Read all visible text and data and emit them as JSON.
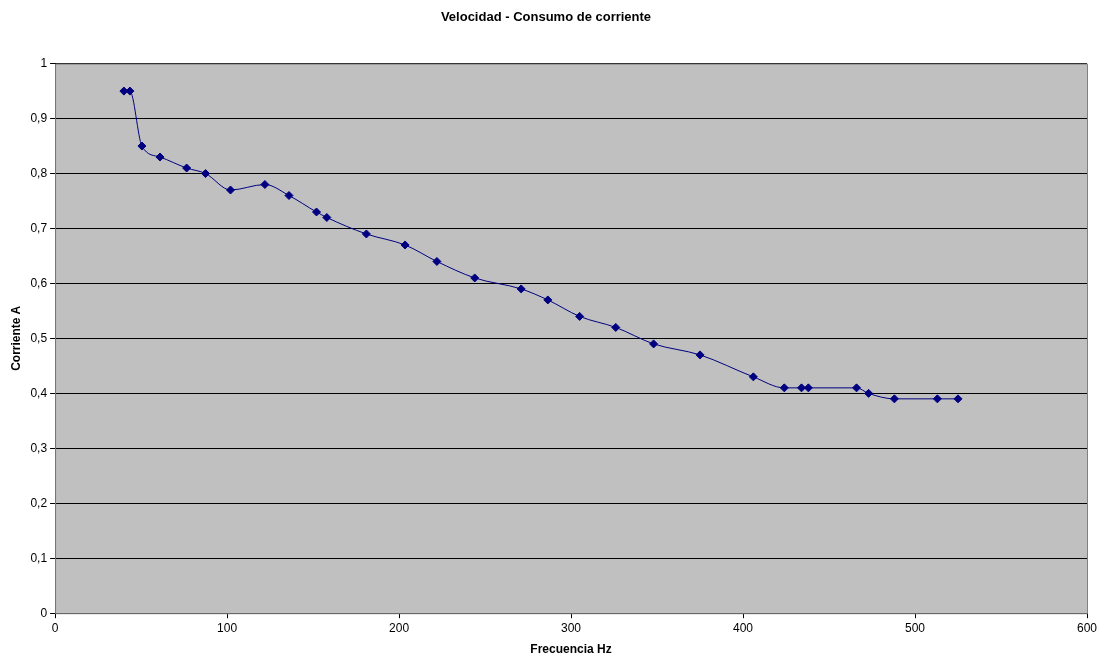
{
  "chart_data": {
    "type": "line",
    "title": "Velocidad - Consumo de corriente",
    "xlabel": "Frecuencia Hz",
    "ylabel": "Corriente A",
    "x": [
      40,
      43.5,
      50.5,
      61,
      76.5,
      87.5,
      102,
      122,
      136,
      152,
      158,
      181,
      203.5,
      222,
      244,
      271,
      286.5,
      305,
      326,
      348,
      375,
      406,
      424,
      434,
      438,
      466,
      473,
      488,
      513,
      525
    ],
    "series": [
      {
        "color": "#000080",
        "values": [
          0.95,
          0.95,
          0.85,
          0.83,
          0.81,
          0.8,
          0.77,
          0.78,
          0.76,
          0.73,
          0.72,
          0.69,
          0.67,
          0.64,
          0.61,
          0.59,
          0.57,
          0.54,
          0.52,
          0.49,
          0.47,
          0.43,
          0.41,
          0.41,
          0.41,
          0.41,
          0.4,
          0.39,
          0.39,
          0.39
        ]
      }
    ],
    "xlim": [
      0,
      600
    ],
    "xticks": [
      0,
      100,
      200,
      300,
      400,
      500,
      600
    ],
    "ylim": [
      0,
      1
    ],
    "yticks": [
      0,
      {
        "value": 0.1,
        "label": "0,1"
      },
      {
        "value": 0.2,
        "label": "0,2"
      },
      {
        "value": 0.3,
        "label": "0,3"
      },
      {
        "value": 0.4,
        "label": "0,4"
      },
      {
        "value": 0.5,
        "label": "0,5"
      },
      {
        "value": 0.6,
        "label": "0,6"
      },
      {
        "value": 0.7,
        "label": "0,7"
      },
      {
        "value": 0.8,
        "label": "0,8"
      },
      {
        "value": 0.9,
        "label": "0,9"
      },
      1
    ],
    "grid": "y",
    "legend": false,
    "marker": "diamond",
    "line_style": "solid"
  }
}
